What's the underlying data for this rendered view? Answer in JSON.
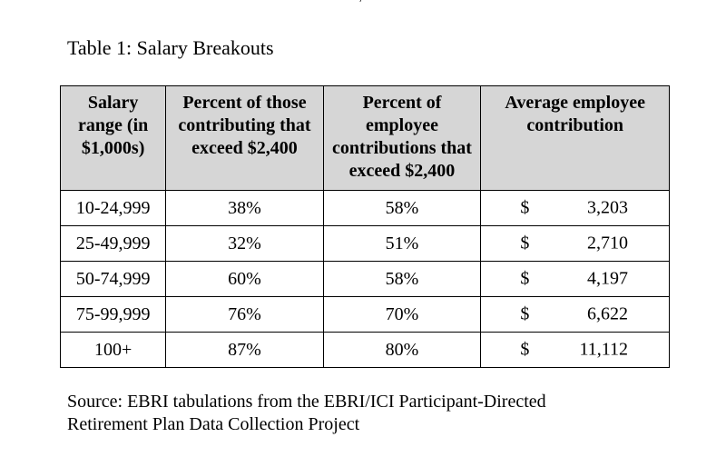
{
  "table": {
    "caption": "Table 1: Salary Breakouts",
    "headers": [
      "Salary range (in $1,000s)",
      "Percent of those contributing that exceed $2,400",
      "Percent of employee contributions that exceed $2,400",
      "Average employee contribution"
    ],
    "rows": [
      {
        "range": "10-24,999",
        "pct_contributors": "38%",
        "pct_contributions": "58%",
        "currency": "$",
        "avg": "3,203"
      },
      {
        "range": "25-49,999",
        "pct_contributors": "32%",
        "pct_contributions": "51%",
        "currency": "$",
        "avg": "2,710"
      },
      {
        "range": "50-74,999",
        "pct_contributors": "60%",
        "pct_contributions": "58%",
        "currency": "$",
        "avg": "4,197"
      },
      {
        "range": "75-99,999",
        "pct_contributors": "76%",
        "pct_contributions": "70%",
        "currency": "$",
        "avg": "6,622"
      },
      {
        "range": "100+",
        "pct_contributors": "87%",
        "pct_contributions": "80%",
        "currency": "$",
        "avg": "11,112"
      }
    ]
  },
  "source": {
    "line1": "Source: EBRI tabulations from the EBRI/ICI Participant-Directed",
    "line2": "Retirement Plan Data Collection Project"
  },
  "colors": {
    "header_background": "#d6d6d6",
    "border": "#000000",
    "text": "#000000"
  }
}
